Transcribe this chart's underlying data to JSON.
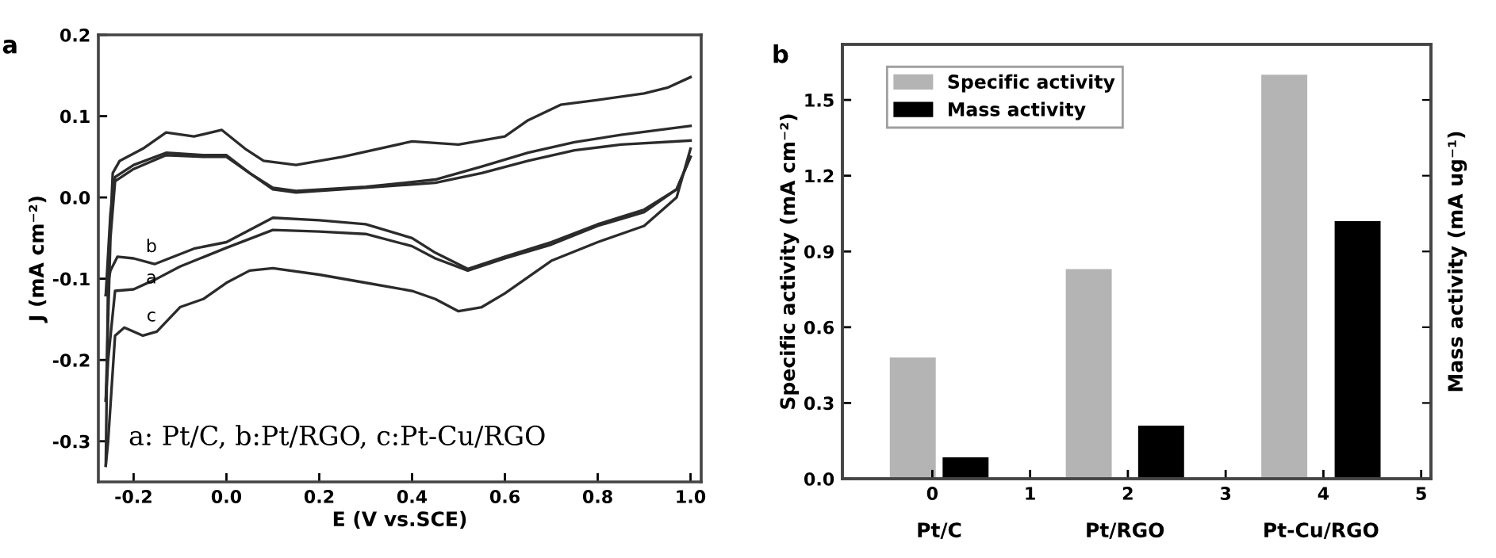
{
  "chart_data": [
    {
      "type": "line",
      "title": "a",
      "xlabel": "E (V vs.SCE)",
      "ylabel": "J (mA cm⁻²)",
      "xlim": [
        -0.276,
        1.023
      ],
      "ylim": [
        -0.35,
        0.2
      ],
      "xticks": [
        {
          "value": -0.2,
          "label": "-0.2"
        },
        {
          "value": 0.0,
          "label": "0.0"
        },
        {
          "value": 0.2,
          "label": "0.2"
        },
        {
          "value": 0.4,
          "label": "0.4"
        },
        {
          "value": 0.6,
          "label": "0.6"
        },
        {
          "value": 0.8,
          "label": "0.8"
        },
        {
          "value": 1.0,
          "label": "1.0"
        }
      ],
      "yticks": [
        {
          "value": -0.3,
          "label": "-0.3"
        },
        {
          "value": -0.2,
          "label": "-0.2"
        },
        {
          "value": -0.1,
          "label": "-0.1"
        },
        {
          "value": 0.0,
          "label": "0.0"
        },
        {
          "value": 0.1,
          "label": "0.1"
        },
        {
          "value": 0.2,
          "label": "0.2"
        }
      ],
      "grid": false,
      "legend": false,
      "marker": "none",
      "line_style": "solid",
      "series": [
        {
          "color": "#2b2b2b",
          "x": [
            -0.26,
            -0.25,
            -0.24,
            -0.2,
            -0.13,
            -0.05,
            0.0,
            0.05,
            0.1,
            0.15,
            0.3,
            0.45,
            0.55,
            0.65,
            0.75,
            0.85,
            1.0
          ],
          "values": [
            -0.25,
            -0.05,
            0.02,
            0.035,
            0.052,
            0.05,
            0.05,
            0.03,
            0.01,
            0.006,
            0.012,
            0.018,
            0.03,
            0.045,
            0.058,
            0.065,
            0.07
          ]
        },
        {
          "color": "#2b2b2b",
          "x": [
            -0.26,
            -0.255,
            -0.24,
            -0.2,
            -0.15,
            -0.1,
            0.0,
            0.1,
            0.2,
            0.3,
            0.4,
            0.45,
            0.52,
            0.6,
            0.7,
            0.8,
            0.9,
            0.97,
            1.0
          ],
          "values": [
            -0.25,
            -0.2,
            -0.115,
            -0.113,
            -0.1,
            -0.085,
            -0.062,
            -0.04,
            -0.042,
            -0.045,
            -0.06,
            -0.075,
            -0.09,
            -0.075,
            -0.058,
            -0.035,
            -0.018,
            0.01,
            0.05
          ]
        },
        {
          "color": "#2b2b2b",
          "x": [
            -0.26,
            -0.25,
            -0.24,
            -0.2,
            -0.13,
            -0.05,
            0.0,
            0.05,
            0.1,
            0.15,
            0.3,
            0.45,
            0.55,
            0.65,
            0.75,
            0.85,
            1.0
          ],
          "values": [
            -0.12,
            -0.02,
            0.025,
            0.04,
            0.055,
            0.052,
            0.052,
            0.03,
            0.012,
            0.008,
            0.013,
            0.022,
            0.038,
            0.055,
            0.068,
            0.077,
            0.088
          ]
        },
        {
          "color": "#2b2b2b",
          "x": [
            -0.26,
            -0.25,
            -0.235,
            -0.2,
            -0.155,
            -0.07,
            0.0,
            0.1,
            0.2,
            0.3,
            0.4,
            0.45,
            0.52,
            0.6,
            0.7,
            0.8,
            0.9,
            0.97,
            1.0
          ],
          "values": [
            -0.12,
            -0.09,
            -0.073,
            -0.075,
            -0.082,
            -0.063,
            -0.055,
            -0.025,
            -0.028,
            -0.033,
            -0.05,
            -0.068,
            -0.088,
            -0.073,
            -0.055,
            -0.033,
            -0.015,
            0.01,
            0.05
          ]
        },
        {
          "color": "#2b2b2b",
          "x": [
            -0.26,
            -0.255,
            -0.245,
            -0.23,
            -0.18,
            -0.13,
            -0.07,
            -0.01,
            0.04,
            0.08,
            0.15,
            0.25,
            0.4,
            0.5,
            0.6,
            0.65,
            0.72,
            0.8,
            0.9,
            0.95,
            1.0
          ],
          "values": [
            -0.33,
            -0.1,
            0.03,
            0.045,
            0.06,
            0.08,
            0.075,
            0.083,
            0.06,
            0.045,
            0.04,
            0.05,
            0.069,
            0.065,
            0.075,
            0.095,
            0.114,
            0.12,
            0.128,
            0.135,
            0.148
          ]
        },
        {
          "color": "#2b2b2b",
          "x": [
            -0.26,
            -0.255,
            -0.24,
            -0.22,
            -0.18,
            -0.15,
            -0.1,
            -0.05,
            0.0,
            0.05,
            0.1,
            0.2,
            0.3,
            0.4,
            0.45,
            0.5,
            0.55,
            0.6,
            0.7,
            0.8,
            0.9,
            0.97,
            1.0
          ],
          "values": [
            -0.33,
            -0.3,
            -0.17,
            -0.16,
            -0.17,
            -0.165,
            -0.135,
            -0.125,
            -0.105,
            -0.09,
            -0.087,
            -0.095,
            -0.105,
            -0.115,
            -0.125,
            -0.14,
            -0.135,
            -0.118,
            -0.078,
            -0.055,
            -0.035,
            0.0,
            0.06
          ]
        }
      ],
      "annotations": [
        "b",
        "a",
        "c",
        "a: Pt/C, b:Pt/RGO, c:Pt-Cu/RGO"
      ]
    },
    {
      "type": "bar",
      "title": "b",
      "ylabel": "Specific activity (mA cm⁻²)",
      "y2label": "Mass activity (mA ug⁻¹)",
      "xlim": [
        -0.92,
        5.1
      ],
      "ylim": [
        0,
        1.72
      ],
      "xticks": [
        0,
        1,
        2,
        3,
        4,
        5
      ],
      "yticks": [
        {
          "value": 0,
          "label": "0.0"
        },
        {
          "value": 0.3,
          "label": "0.3"
        },
        {
          "value": 0.6,
          "label": "0.6"
        },
        {
          "value": 0.9,
          "label": "0.9"
        },
        {
          "value": 1.2,
          "label": "1.2"
        },
        {
          "value": 1.5,
          "label": "1.5"
        }
      ],
      "grid": false,
      "legend": "top left",
      "series": [
        {
          "name": "Specific activity",
          "color": "#b4b4b4",
          "x": [
            -0.2,
            1.6,
            3.6
          ],
          "values": [
            0.48,
            0.83,
            1.6
          ]
        },
        {
          "name": "Mass activity",
          "color": "#000000",
          "x": [
            0.34,
            2.34,
            4.35
          ],
          "values": [
            0.085,
            0.21,
            1.02
          ]
        }
      ],
      "annotations": [
        "Pt/C",
        "Pt/RGO",
        "Pt-Cu/RGO"
      ]
    }
  ]
}
